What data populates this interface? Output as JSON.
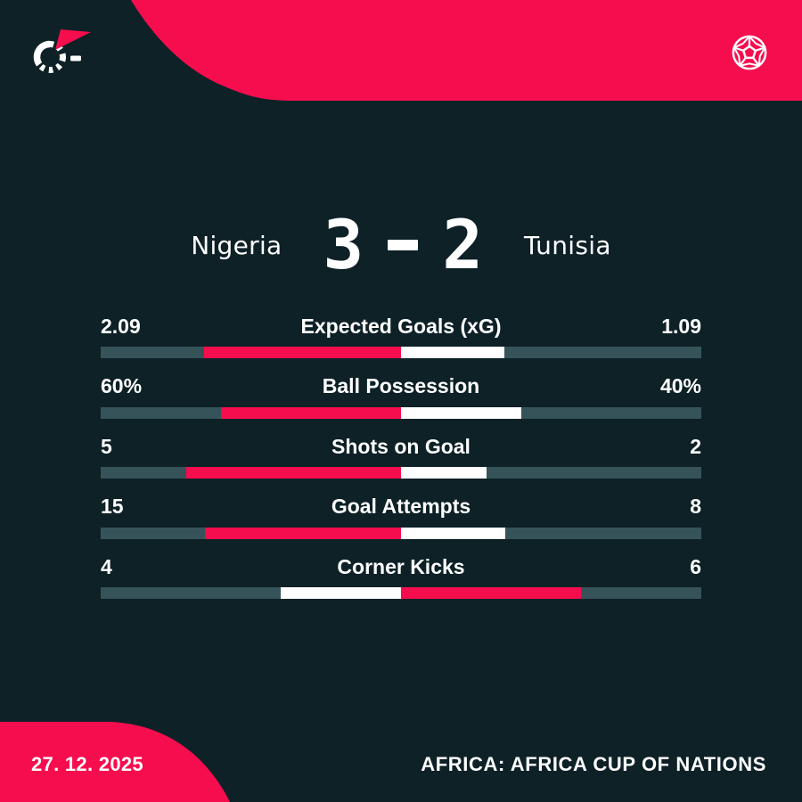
{
  "colors": {
    "background": "#0d2127",
    "accent": "#f60d4e",
    "track": "#36535a",
    "text": "#ffffff"
  },
  "header": {
    "logo_icon": "flashscore-logo",
    "ball_icon": "soccer-ball-icon"
  },
  "match": {
    "home_team": "Nigeria",
    "away_team": "Tunisia",
    "home_score": "3",
    "away_score": "2",
    "separator": "-"
  },
  "chart_data": {
    "type": "bar",
    "subtype": "diverging-centered-stat-bars",
    "title": "Nigeria 3 - 2 Tunisia",
    "categories": [
      "Expected Goals (xG)",
      "Ball Possession",
      "Shots on Goal",
      "Goal Attempts",
      "Corner Kicks"
    ],
    "series": [
      {
        "name": "Nigeria",
        "side": "home",
        "values": [
          2.09,
          60,
          5,
          15,
          4
        ],
        "labels": [
          "2.09",
          "60%",
          "5",
          "15",
          "4"
        ]
      },
      {
        "name": "Tunisia",
        "side": "away",
        "values": [
          1.09,
          40,
          2,
          8,
          6
        ],
        "labels": [
          "1.09",
          "40%",
          "2",
          "8",
          "6"
        ]
      }
    ],
    "legend_position": "none",
    "grid": false,
    "layout_notes": "Each stat bar diverges from the track center; the two colored segments together span half the track width, split proportionally to the two values. The leading team's segment is accent red, the trailing team's is white."
  },
  "footer": {
    "date": "27. 12. 2025",
    "competition": "AFRICA: AFRICA CUP OF NATIONS"
  }
}
